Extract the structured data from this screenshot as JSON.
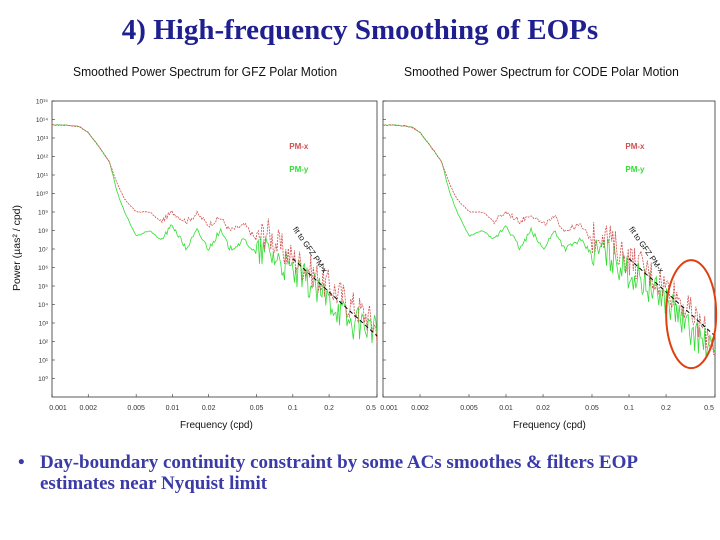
{
  "slide": {
    "title": "4)  High-frequency Smoothing of EOPs",
    "bullet_symbol": "•",
    "bullet": "Day-boundary continuity constraint by some ACs smoothes & filters EOP estimates near Nyquist limit"
  },
  "colors": {
    "pm_x": "#d05050",
    "pm_y": "#33dd33",
    "fit": "#000000",
    "highlight_circle": "#e04010",
    "title": "#1f1f8f",
    "bullet": "#3a3aa8"
  },
  "chart_data": [
    {
      "type": "line",
      "title": "Smoothed Power Spectrum for GFZ Polar Motion",
      "xlabel": "Frequency (cpd)",
      "ylabel": "Power (µas² / cpd)",
      "x_scale": "log",
      "y_scale": "log",
      "xlim": [
        0.001,
        0.5
      ],
      "ylim": [
        0.1,
        1000000000000000.0
      ],
      "x_ticks": [
        "0.001",
        "0.002",
        "0.005",
        "0.01",
        "0.02",
        "0.05",
        "0.1",
        "0.2",
        "0.5"
      ],
      "y_ticks": [
        "10⁰",
        "10¹",
        "10²",
        "10³",
        "10⁴",
        "10⁵",
        "10⁶",
        "10⁷",
        "10⁸",
        "10⁹",
        "10¹⁰",
        "10¹¹",
        "10¹²",
        "10¹³",
        "10¹⁴",
        "10¹⁵"
      ],
      "legend": [
        "PM-x",
        "PM-y"
      ],
      "legend_placement": "top-right",
      "annotation": "fit to GFZ PM-x",
      "series": [
        {
          "name": "PM-x",
          "x": [
            0.001,
            0.0013,
            0.0015,
            0.0017,
            0.002,
            0.0023,
            0.0026,
            0.003,
            0.0035,
            0.004,
            0.005,
            0.0065,
            0.008,
            0.01,
            0.013,
            0.016,
            0.02,
            0.025,
            0.03,
            0.04,
            0.05,
            0.06,
            0.08,
            0.1,
            0.13,
            0.16,
            0.2,
            0.25,
            0.3,
            0.4,
            0.5
          ],
          "y": [
            50000000000000.0,
            50000000000000.0,
            45000000000000.0,
            40000000000000.0,
            20000000000000.0,
            6000000000000.0,
            2000000000000.0,
            500000000000.0,
            30000000000.0,
            5000000000.0,
            1000000000.0,
            1000000000.0,
            300000000.0,
            1000000000.0,
            300000000.0,
            800000000.0,
            200000000.0,
            500000000.0,
            100000000.0,
            200000000.0,
            30000000.0,
            100000000.0,
            10000000.0,
            3000000.0,
            1000000.0,
            300000.0,
            100000.0,
            30000.0,
            10000.0,
            3000.0,
            500.0
          ]
        },
        {
          "name": "PM-y",
          "x": [
            0.001,
            0.0013,
            0.0015,
            0.0017,
            0.002,
            0.0023,
            0.0026,
            0.003,
            0.0035,
            0.004,
            0.005,
            0.0065,
            0.008,
            0.01,
            0.013,
            0.016,
            0.02,
            0.025,
            0.03,
            0.04,
            0.05,
            0.06,
            0.08,
            0.1,
            0.13,
            0.16,
            0.2,
            0.25,
            0.3,
            0.4,
            0.5
          ],
          "y": [
            50000000000000.0,
            50000000000000.0,
            45000000000000.0,
            40000000000000.0,
            20000000000000.0,
            6000000000000.0,
            2000000000000.0,
            500000000000.0,
            10000000000.0,
            1000000000.0,
            50000000.0,
            100000000.0,
            30000000.0,
            200000000.0,
            10000000.0,
            100000000.0,
            10000000.0,
            100000000.0,
            10000000.0,
            30000000.0,
            5000000.0,
            10000000.0,
            2000000.0,
            500000.0,
            200000.0,
            50000.0,
            20000.0,
            5000.0,
            1000.0,
            1000.0,
            300.0
          ]
        },
        {
          "name": "fit to GFZ PM-x",
          "x": [
            0.1,
            0.5
          ],
          "y": [
            3000000.0,
            200
          ]
        }
      ]
    },
    {
      "type": "line",
      "title": "Smoothed Power Spectrum for CODE Polar Motion",
      "xlabel": "Frequency (cpd)",
      "ylabel": "",
      "x_scale": "log",
      "y_scale": "log",
      "xlim": [
        0.001,
        0.5
      ],
      "ylim": [
        0.1,
        1000000000000000.0
      ],
      "x_ticks": [
        "0.001",
        "0.002",
        "0.005",
        "0.01",
        "0.02",
        "0.05",
        "0.1",
        "0.2",
        "0.5"
      ],
      "legend": [
        "PM-x",
        "PM-y"
      ],
      "legend_placement": "top-right",
      "annotation": "fit to GFZ PM-x",
      "highlight": "circle around highest frequencies (0.25–0.5 cpd)",
      "series": [
        {
          "name": "PM-x",
          "x": [
            0.001,
            0.0013,
            0.0015,
            0.0017,
            0.002,
            0.0023,
            0.0026,
            0.003,
            0.0035,
            0.004,
            0.005,
            0.0065,
            0.008,
            0.01,
            0.013,
            0.016,
            0.02,
            0.025,
            0.03,
            0.04,
            0.05,
            0.06,
            0.08,
            0.1,
            0.13,
            0.16,
            0.2,
            0.25,
            0.3,
            0.4,
            0.5
          ],
          "y": [
            50000000000000.0,
            50000000000000.0,
            45000000000000.0,
            40000000000000.0,
            20000000000000.0,
            6000000000000.0,
            2000000000000.0,
            500000000000.0,
            30000000000.0,
            5000000000.0,
            1000000000.0,
            1000000000.0,
            300000000.0,
            1000000000.0,
            300000000.0,
            800000000.0,
            200000000.0,
            500000000.0,
            100000000.0,
            200000000.0,
            30000000.0,
            100000000.0,
            10000000.0,
            3000000.0,
            1000000.0,
            300000.0,
            100000.0,
            30000.0,
            5000.0,
            500.0,
            50
          ]
        },
        {
          "name": "PM-y",
          "x": [
            0.001,
            0.0013,
            0.0015,
            0.0017,
            0.002,
            0.0023,
            0.0026,
            0.003,
            0.0035,
            0.004,
            0.005,
            0.0065,
            0.008,
            0.01,
            0.013,
            0.016,
            0.02,
            0.025,
            0.03,
            0.04,
            0.05,
            0.06,
            0.08,
            0.1,
            0.13,
            0.16,
            0.2,
            0.25,
            0.3,
            0.4,
            0.5
          ],
          "y": [
            50000000000000.0,
            50000000000000.0,
            45000000000000.0,
            40000000000000.0,
            20000000000000.0,
            6000000000000.0,
            2000000000000.0,
            500000000000.0,
            10000000000.0,
            1000000000.0,
            50000000.0,
            100000000.0,
            30000000.0,
            200000000.0,
            10000000.0,
            100000000.0,
            10000000.0,
            100000000.0,
            10000000.0,
            30000000.0,
            5000000.0,
            10000000.0,
            2000000.0,
            500000.0,
            200000.0,
            50000.0,
            20000.0,
            3000.0,
            500,
            100,
            20
          ]
        },
        {
          "name": "fit to GFZ PM-x",
          "x": [
            0.1,
            0.5
          ],
          "y": [
            3000000.0,
            200
          ]
        }
      ]
    }
  ]
}
